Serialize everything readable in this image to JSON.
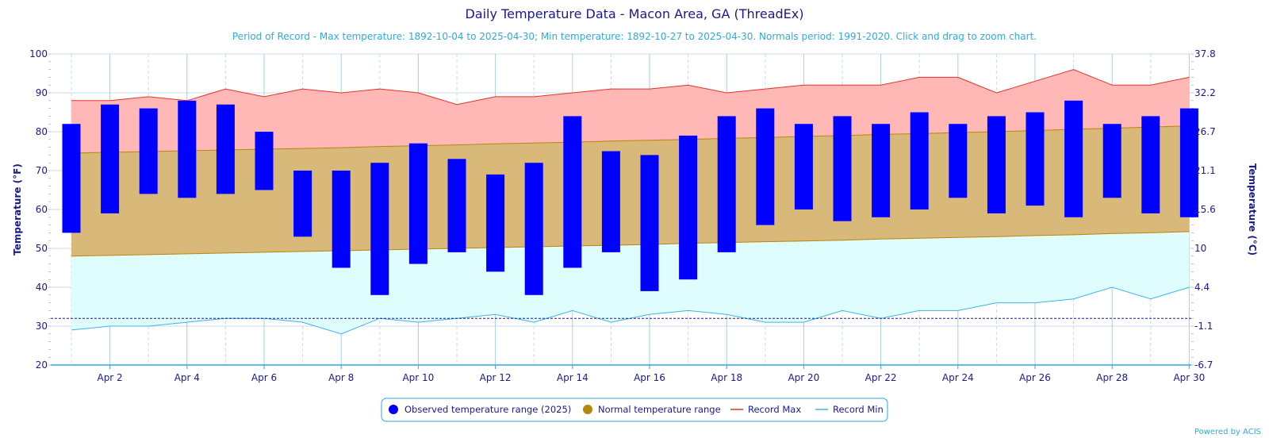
{
  "chart_data": {
    "type": "bar",
    "title": "Daily Temperature Data - Macon Area, GA (ThreadEx)",
    "subtitle": "Period of Record - Max temperature: 1892-10-04 to 2025-04-30; Min temperature: 1892-10-27 to 2025-04-30. Normals period: 1991-2020. Click and drag to zoom chart.",
    "ylabel": "Temperature (°F)",
    "ylabel_right": "Temperature (°C)",
    "ylim": [
      20,
      100
    ],
    "y_ticks": [
      20,
      30,
      40,
      50,
      60,
      70,
      80,
      90,
      100
    ],
    "y_ticks_right": [
      "-6.7",
      "-1.1",
      "4.4",
      "10",
      "15.6",
      "21.1",
      "26.7",
      "32.2",
      "37.8"
    ],
    "days": [
      1,
      2,
      3,
      4,
      5,
      6,
      7,
      8,
      9,
      10,
      11,
      12,
      13,
      14,
      15,
      16,
      17,
      18,
      19,
      20,
      21,
      22,
      23,
      24,
      25,
      26,
      27,
      28,
      29,
      30
    ],
    "x_tick_labels": [
      "Apr 2",
      "Apr 4",
      "Apr 6",
      "Apr 8",
      "Apr 10",
      "Apr 12",
      "Apr 14",
      "Apr 16",
      "Apr 18",
      "Apr 20",
      "Apr 22",
      "Apr 24",
      "Apr 26",
      "Apr 28",
      "Apr 30"
    ],
    "x_tick_days": [
      2,
      4,
      6,
      8,
      10,
      12,
      14,
      16,
      18,
      20,
      22,
      24,
      26,
      28,
      30
    ],
    "freezing_line": 32,
    "grid": true,
    "legend_position": "bottom",
    "series": [
      {
        "name": "Observed temperature range (2025)",
        "color": "#0000ff",
        "high": [
          82,
          87,
          86,
          88,
          87,
          80,
          70,
          70,
          72,
          77,
          73,
          69,
          72,
          84,
          75,
          74,
          79,
          84,
          86,
          82,
          84,
          82,
          85,
          82,
          84,
          85,
          88,
          82,
          84,
          86
        ],
        "low": [
          54,
          59,
          64,
          63,
          64,
          65,
          53,
          45,
          38,
          46,
          49,
          44,
          38,
          45,
          49,
          39,
          42,
          49,
          56,
          60,
          57,
          58,
          60,
          63,
          59,
          61,
          58,
          63,
          59,
          58
        ]
      },
      {
        "name": "Normal temperature range",
        "color": "#b8860b",
        "high": [
          74.5,
          74.7,
          74.9,
          75.1,
          75.3,
          75.5,
          75.7,
          75.9,
          76.2,
          76.4,
          76.6,
          76.9,
          77.1,
          77.3,
          77.6,
          77.8,
          78.0,
          78.3,
          78.5,
          78.8,
          79.0,
          79.3,
          79.5,
          79.8,
          80.0,
          80.3,
          80.6,
          80.9,
          81.2,
          81.5
        ],
        "low": [
          48.0,
          48.2,
          48.4,
          48.6,
          48.8,
          49.0,
          49.2,
          49.4,
          49.6,
          49.8,
          50.0,
          50.2,
          50.4,
          50.6,
          50.8,
          51.0,
          51.3,
          51.5,
          51.7,
          51.9,
          52.1,
          52.4,
          52.6,
          52.8,
          53.0,
          53.3,
          53.5,
          53.8,
          54.0,
          54.3
        ]
      },
      {
        "name": "Record Max",
        "color": "#e8302a",
        "values": [
          88,
          88,
          89,
          88,
          91,
          89,
          91,
          90,
          91,
          90,
          87,
          89,
          89,
          90,
          91,
          91,
          92,
          90,
          91,
          92,
          92,
          92,
          94,
          94,
          90,
          93,
          96,
          92,
          92,
          94
        ]
      },
      {
        "name": "Record Min",
        "color": "#3cb4e8",
        "values": [
          29,
          30,
          30,
          31,
          32,
          32,
          31,
          28,
          32,
          31,
          32,
          33,
          31,
          34,
          31,
          33,
          34,
          33,
          31,
          31,
          34,
          32,
          34,
          34,
          36,
          36,
          37,
          40,
          37,
          40
        ]
      }
    ],
    "fill_colors": {
      "record_max_band": "#ffb8b5",
      "normal_band": "#d9b97a",
      "record_min_band": "#e0fdfd"
    }
  },
  "credit": "Powered by ACIS"
}
